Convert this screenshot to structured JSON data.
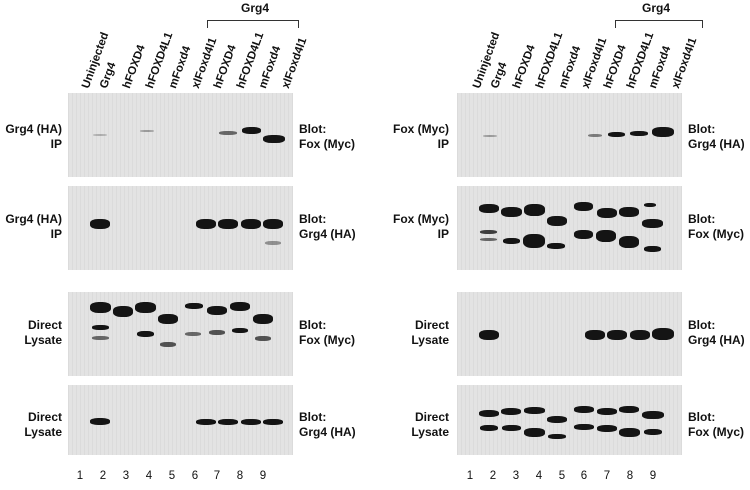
{
  "left_figure": {
    "lane_headers": [
      "Uninjected",
      "Grg4",
      "hFOXD4",
      "hFOXD4L1",
      "mFoxd4",
      "xlFoxd4l1",
      "hFOXD4",
      "hFOXD4L1",
      "mFoxd4",
      "xlFoxd4l1"
    ],
    "group_label": "Grg4",
    "rows": [
      {
        "side": [
          "Grg4 (HA)",
          "IP"
        ],
        "blot": [
          "Blot:",
          "Fox (Myc)"
        ]
      },
      {
        "side": [
          "Grg4 (HA)",
          "IP"
        ],
        "blot": [
          "Blot:",
          "Grg4 (HA)"
        ]
      },
      {
        "side": [
          "Direct",
          "Lysate"
        ],
        "blot": [
          "Blot:",
          "Fox (Myc)"
        ]
      },
      {
        "side": [
          "Direct",
          "Lysate"
        ],
        "blot": [
          "Blot:",
          "Grg4 (HA)"
        ]
      }
    ],
    "lane_numbers": [
      "1",
      "2",
      "3",
      "4",
      "5",
      "6",
      "7",
      "8",
      "9"
    ]
  },
  "right_figure": {
    "lane_headers": [
      "Uninjected",
      "Grg4",
      "hFOXD4",
      "hFOXD4L1",
      "mFoxd4",
      "xlFoxd4l1",
      "hFOXD4",
      "hFOXD4L1",
      "mFoxd4",
      "xlFoxd4l1"
    ],
    "group_label": "Grg4",
    "rows": [
      {
        "side": [
          "Fox (Myc)",
          "IP"
        ],
        "blot": [
          "Blot:",
          "Grg4 (HA)"
        ]
      },
      {
        "side": [
          "Fox (Myc)",
          "IP"
        ],
        "blot": [
          "Blot:",
          "Fox (Myc)"
        ]
      },
      {
        "side": [
          "Direct",
          "Lysate"
        ],
        "blot": [
          "Blot:",
          "Grg4 (HA)"
        ]
      },
      {
        "side": [
          "Direct",
          "Lysate"
        ],
        "blot": [
          "Blot:",
          "Fox (Myc)"
        ]
      }
    ],
    "lane_numbers": [
      "1",
      "2",
      "3",
      "4",
      "5",
      "6",
      "7",
      "8",
      "9"
    ]
  }
}
